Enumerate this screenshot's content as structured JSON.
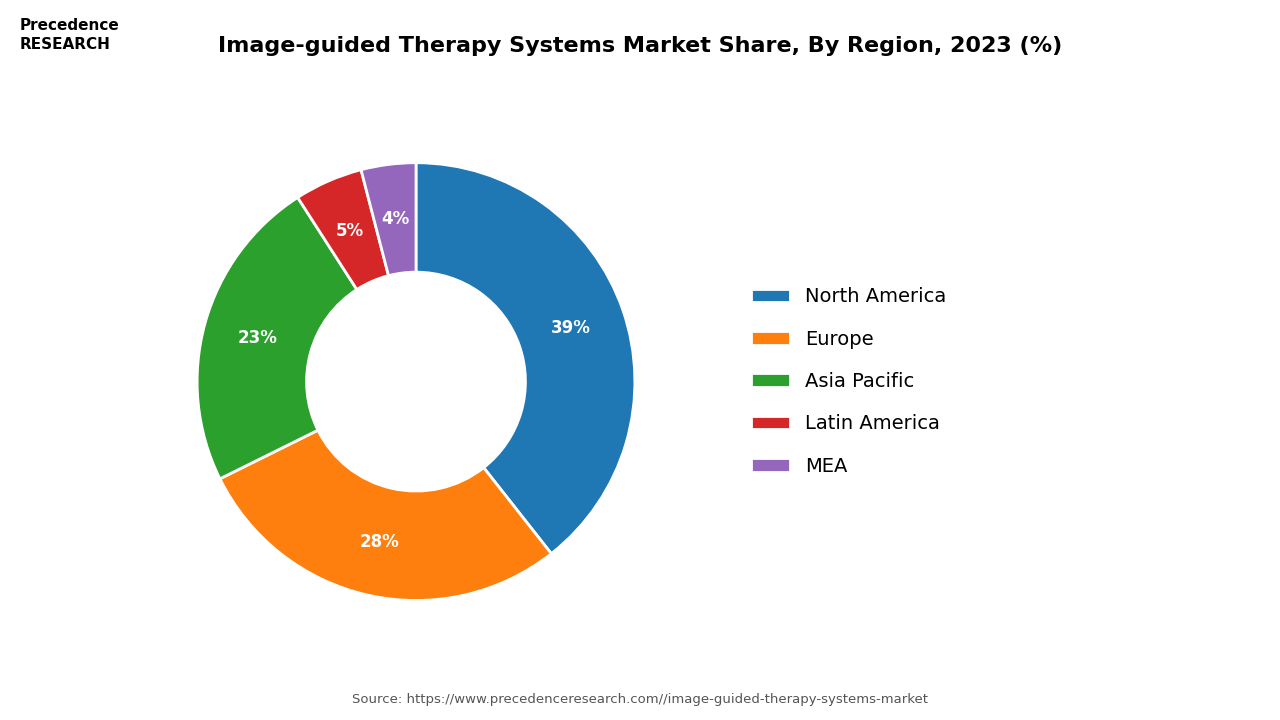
{
  "chart_data": {
    "type": "donut",
    "title": "Image-guided Therapy Systems Market Share, By Region, 2023 (%)",
    "categories": [
      "North America",
      "Europe",
      "Asia Pacific",
      "Latin America",
      "MEA"
    ],
    "values": [
      39,
      28,
      23,
      5,
      4
    ],
    "value_labels": [
      "39%",
      "28%",
      "23%",
      "5%",
      "4%"
    ],
    "data_labels": true,
    "legend": "center left",
    "annotations": [
      "Precedence\nRESEARCH",
      "Source: https://www.precedenceresearch.com//image-guided-therapy-systems-market"
    ]
  }
}
